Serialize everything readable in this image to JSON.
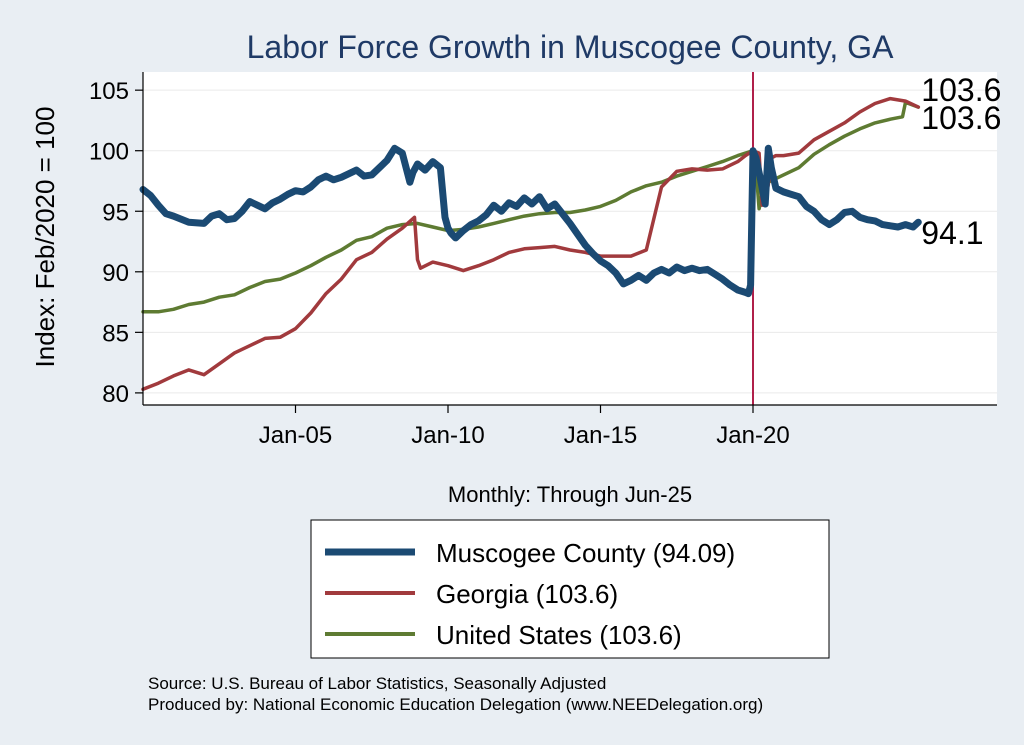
{
  "colors": {
    "background": "#e9eef3",
    "plot_bg": "#ffffff",
    "title": "#1f3a66",
    "muscogee": "#1b4a73",
    "georgia": "#a13a3d",
    "us": "#5e7b32",
    "vline": "#b0204a",
    "grid": "#eaeaea",
    "axis": "#000000"
  },
  "chart_data": {
    "type": "line",
    "title": "Labor Force Growth in Muscogee  County, GA",
    "xlabel": "Monthly: Through Jun-25",
    "ylabel": "Index: Feb/2020 = 100",
    "xlim": [
      2000.0,
      2028.0
    ],
    "ylim": [
      79.0,
      106.5
    ],
    "yticks": [
      80,
      85,
      90,
      95,
      100,
      105
    ],
    "xticks": [
      {
        "label": "Jan-05",
        "value": 2005.0
      },
      {
        "label": "Jan-10",
        "value": 2010.0
      },
      {
        "label": "Jan-15",
        "value": 2015.0
      },
      {
        "label": "Jan-20",
        "value": 2020.0
      }
    ],
    "vline": 2020.0,
    "grid": true,
    "legend_position": "bottom",
    "series": [
      {
        "name": "Muscogee  County",
        "legend_label": "Muscogee  County (94.09)",
        "key": "muscogee",
        "end_label": "94.1",
        "x": [
          2000.0,
          2000.25,
          2000.5,
          2000.75,
          2001.0,
          2001.5,
          2002.0,
          2002.25,
          2002.5,
          2002.75,
          2003.0,
          2003.25,
          2003.5,
          2003.75,
          2004.0,
          2004.25,
          2004.5,
          2004.75,
          2005.0,
          2005.25,
          2005.5,
          2005.75,
          2006.0,
          2006.25,
          2006.5,
          2006.75,
          2007.0,
          2007.25,
          2007.5,
          2007.75,
          2008.0,
          2008.25,
          2008.5,
          2008.75,
          2008.85,
          2009.0,
          2009.25,
          2009.5,
          2009.75,
          2009.9,
          2010.0,
          2010.1,
          2010.25,
          2010.5,
          2010.75,
          2011.0,
          2011.25,
          2011.5,
          2011.75,
          2012.0,
          2012.25,
          2012.5,
          2012.75,
          2013.0,
          2013.25,
          2013.5,
          2013.75,
          2014.0,
          2014.25,
          2014.5,
          2014.75,
          2015.0,
          2015.25,
          2015.5,
          2015.75,
          2016.0,
          2016.25,
          2016.5,
          2016.75,
          2017.0,
          2017.25,
          2017.5,
          2017.75,
          2018.0,
          2018.25,
          2018.5,
          2018.75,
          2019.0,
          2019.25,
          2019.5,
          2019.75,
          2019.85,
          2019.92,
          2020.0,
          2020.1,
          2020.25,
          2020.4,
          2020.5,
          2020.6,
          2020.75,
          2021.0,
          2021.25,
          2021.5,
          2021.75,
          2022.0,
          2022.25,
          2022.5,
          2022.75,
          2023.0,
          2023.25,
          2023.5,
          2023.75,
          2024.0,
          2024.25,
          2024.5,
          2024.75,
          2025.0,
          2025.25,
          2025.42
        ],
        "values": [
          96.8,
          96.3,
          95.5,
          94.8,
          94.6,
          94.1,
          94.0,
          94.6,
          94.8,
          94.3,
          94.4,
          95.0,
          95.8,
          95.5,
          95.2,
          95.7,
          96.0,
          96.4,
          96.7,
          96.6,
          97.0,
          97.6,
          97.9,
          97.6,
          97.8,
          98.1,
          98.4,
          97.9,
          98.0,
          98.6,
          99.2,
          100.2,
          99.8,
          97.4,
          98.2,
          98.9,
          98.4,
          99.1,
          98.6,
          94.5,
          93.6,
          93.2,
          92.8,
          93.4,
          93.9,
          94.2,
          94.7,
          95.5,
          95.0,
          95.7,
          95.4,
          96.1,
          95.6,
          96.2,
          95.2,
          95.6,
          94.8,
          94.0,
          93.1,
          92.2,
          91.5,
          90.9,
          90.5,
          89.9,
          89.0,
          89.3,
          89.7,
          89.3,
          89.9,
          90.2,
          89.9,
          90.4,
          90.1,
          90.3,
          90.1,
          90.2,
          89.8,
          89.4,
          88.9,
          88.5,
          88.3,
          88.2,
          88.9,
          100.0,
          99.4,
          97.6,
          95.6,
          100.2,
          98.6,
          96.9,
          96.6,
          96.4,
          96.2,
          95.4,
          95.0,
          94.3,
          93.9,
          94.3,
          94.9,
          95.0,
          94.5,
          94.3,
          94.2,
          93.9,
          93.8,
          93.7,
          93.9,
          93.7,
          94.1
        ],
        "line_width": 7
      },
      {
        "name": "Georgia",
        "legend_label": "Georgia (103.6)",
        "key": "georgia",
        "end_label": "103.6",
        "x": [
          2000.0,
          2000.5,
          2001.0,
          2001.5,
          2002.0,
          2002.5,
          2003.0,
          2003.5,
          2004.0,
          2004.5,
          2005.0,
          2005.5,
          2006.0,
          2006.5,
          2007.0,
          2007.5,
          2008.0,
          2008.5,
          2008.9,
          2009.0,
          2009.1,
          2009.5,
          2010.0,
          2010.5,
          2011.0,
          2011.5,
          2012.0,
          2012.5,
          2013.0,
          2013.5,
          2014.0,
          2014.5,
          2015.0,
          2015.5,
          2016.0,
          2016.5,
          2017.0,
          2017.5,
          2018.0,
          2018.5,
          2019.0,
          2019.5,
          2019.75,
          2020.0,
          2020.2,
          2020.3,
          2020.4,
          2020.5,
          2020.6,
          2020.75,
          2021.0,
          2021.5,
          2022.0,
          2022.5,
          2023.0,
          2023.5,
          2024.0,
          2024.5,
          2025.0,
          2025.42
        ],
        "values": [
          80.3,
          80.8,
          81.4,
          81.9,
          81.5,
          82.4,
          83.3,
          83.9,
          84.5,
          84.6,
          85.3,
          86.6,
          88.2,
          89.4,
          91.0,
          91.6,
          92.7,
          93.6,
          94.5,
          91.0,
          90.3,
          90.8,
          90.5,
          90.1,
          90.5,
          91.0,
          91.6,
          91.9,
          92.0,
          92.1,
          91.8,
          91.6,
          91.3,
          91.3,
          91.3,
          91.8,
          97.0,
          98.3,
          98.5,
          98.4,
          98.5,
          99.1,
          99.6,
          100.0,
          99.8,
          95.5,
          96.0,
          97.2,
          99.4,
          99.6,
          99.6,
          99.8,
          100.9,
          101.6,
          102.3,
          103.2,
          103.9,
          104.3,
          104.1,
          103.6
        ],
        "line_width": 3.5
      },
      {
        "name": "United States",
        "legend_label": "United States (103.6)",
        "key": "us",
        "end_label": "103.6",
        "x": [
          2000.0,
          2000.5,
          2001.0,
          2001.5,
          2002.0,
          2002.5,
          2003.0,
          2003.5,
          2004.0,
          2004.5,
          2005.0,
          2005.5,
          2006.0,
          2006.5,
          2007.0,
          2007.5,
          2008.0,
          2008.5,
          2009.0,
          2009.5,
          2010.0,
          2010.5,
          2011.0,
          2011.5,
          2012.0,
          2012.5,
          2013.0,
          2013.5,
          2014.0,
          2014.5,
          2015.0,
          2015.5,
          2016.0,
          2016.5,
          2017.0,
          2017.5,
          2018.0,
          2018.5,
          2019.0,
          2019.5,
          2020.0,
          2020.1,
          2020.2,
          2020.3,
          2020.5,
          2020.75,
          2021.0,
          2021.5,
          2022.0,
          2022.5,
          2023.0,
          2023.5,
          2024.0,
          2024.5,
          2024.9,
          2025.0,
          2025.42
        ],
        "values": [
          86.7,
          86.7,
          86.9,
          87.3,
          87.5,
          87.9,
          88.1,
          88.7,
          89.2,
          89.4,
          89.9,
          90.5,
          91.2,
          91.8,
          92.6,
          92.9,
          93.6,
          93.9,
          94.0,
          93.7,
          93.4,
          93.5,
          93.7,
          94.0,
          94.3,
          94.6,
          94.8,
          94.9,
          94.9,
          95.1,
          95.4,
          95.9,
          96.6,
          97.1,
          97.4,
          97.9,
          98.3,
          98.7,
          99.1,
          99.6,
          100.0,
          98.5,
          95.2,
          96.4,
          97.4,
          97.7,
          98.0,
          98.6,
          99.7,
          100.5,
          101.2,
          101.8,
          102.3,
          102.6,
          102.8,
          104.0,
          103.6
        ],
        "line_width": 3.5
      }
    ]
  },
  "source_text": "Source: U.S. Bureau of Labor Statistics, Seasonally Adjusted",
  "produced_text": "Produced by: National Economic Education Delegation (www.NEEDelegation.org)"
}
